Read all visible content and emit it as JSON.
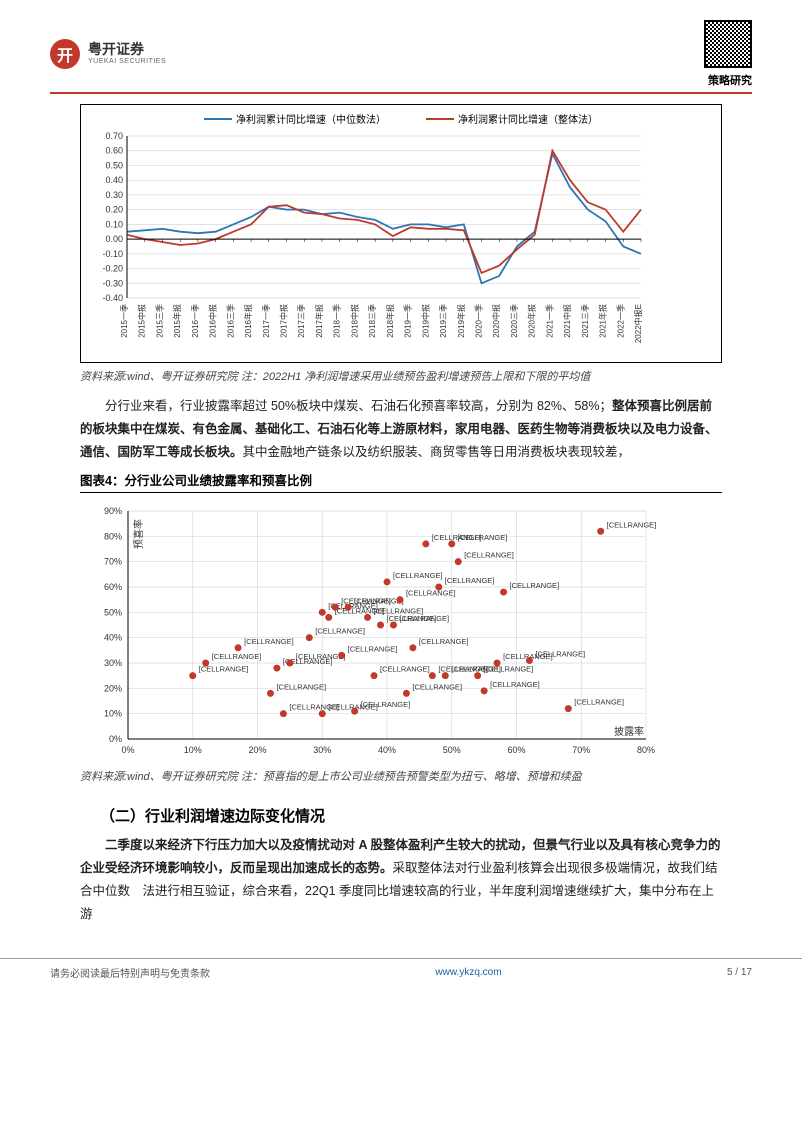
{
  "header": {
    "logo_cn": "粤开证券",
    "logo_en": "YUEKAI SECURITIES",
    "logo_mark": "开",
    "strategy": "策略研究"
  },
  "chart1": {
    "type": "line",
    "legend": [
      {
        "label": "净利润累计同比增速（中位数法）",
        "color": "#2e75b6"
      },
      {
        "label": "净利润累计同比增速（整体法）",
        "color": "#c0392b"
      }
    ],
    "x_categories": [
      "2015一季",
      "2015中报",
      "2015三季",
      "2015年报",
      "2016一季",
      "2016中报",
      "2016三季",
      "2016年报",
      "2017一季",
      "2017中报",
      "2017三季",
      "2017年报",
      "2018一季",
      "2018中报",
      "2018三季",
      "2018年报",
      "2019一季",
      "2019中报",
      "2019三季",
      "2019年报",
      "2020一季",
      "2020中报",
      "2020三季",
      "2020年报",
      "2021一季",
      "2021中报",
      "2021三季",
      "2021年报",
      "2022一季",
      "2022中报E"
    ],
    "ylim": [
      -0.4,
      0.7
    ],
    "yticks": [
      -0.4,
      -0.3,
      -0.2,
      -0.1,
      0.0,
      0.1,
      0.2,
      0.3,
      0.4,
      0.5,
      0.6,
      0.7
    ],
    "grid_color": "#d9d9d9",
    "axis_color": "#000000",
    "title_fontsize": 9,
    "series": {
      "blue": [
        0.05,
        0.06,
        0.07,
        0.05,
        0.04,
        0.05,
        0.1,
        0.15,
        0.22,
        0.2,
        0.2,
        0.17,
        0.18,
        0.15,
        0.13,
        0.07,
        0.1,
        0.1,
        0.08,
        0.1,
        -0.3,
        -0.25,
        -0.05,
        0.05,
        0.58,
        0.35,
        0.2,
        0.12,
        -0.05,
        -0.1
      ],
      "red": [
        0.03,
        0.0,
        -0.02,
        -0.04,
        -0.03,
        0.0,
        0.05,
        0.1,
        0.22,
        0.23,
        0.18,
        0.17,
        0.14,
        0.13,
        0.1,
        0.02,
        0.08,
        0.07,
        0.07,
        0.06,
        -0.23,
        -0.18,
        -0.07,
        0.03,
        0.6,
        0.4,
        0.25,
        0.2,
        0.05,
        0.2
      ]
    },
    "source": "资料来源:wind、粤开证券研究院  注：2022H1 净利润增速采用业绩预告盈利增速预告上限和下限的平均值"
  },
  "para1": {
    "lead": "分行业来看，行业披露率超过 50%板块中煤炭、石油石化预喜率较高，分别为 82%、58%；",
    "bold": "整体预喜比例居前的板块集中在煤炭、有色金属、基础化工、石油石化等上游原材料，家用电器、医药生物等消费板块以及电力设备、通信、国防军工等成长板块。",
    "tail": "其中金融地产链条以及纺织服装、商贸零售等日用消费板块表现较差，"
  },
  "figure4_title": "图表4：分行业公司业绩披露率和预喜比例",
  "chart2": {
    "type": "scatter",
    "xlim": [
      0,
      80
    ],
    "ylim": [
      0,
      90
    ],
    "xticks": [
      0,
      10,
      20,
      30,
      40,
      50,
      60,
      70,
      80
    ],
    "yticks": [
      0,
      10,
      20,
      30,
      40,
      50,
      60,
      70,
      80,
      90
    ],
    "grid_color": "#d9d9d9",
    "marker_color": "#c0392b",
    "label_color": "#333333",
    "xlabel": "披露率",
    "ylabel": "预喜率",
    "point_label": "[CELLRANGE]",
    "points": [
      {
        "x": 10,
        "y": 25
      },
      {
        "x": 12,
        "y": 30
      },
      {
        "x": 17,
        "y": 36
      },
      {
        "x": 22,
        "y": 18
      },
      {
        "x": 23,
        "y": 28
      },
      {
        "x": 24,
        "y": 10
      },
      {
        "x": 25,
        "y": 30
      },
      {
        "x": 28,
        "y": 40
      },
      {
        "x": 30,
        "y": 50
      },
      {
        "x": 30,
        "y": 10
      },
      {
        "x": 31,
        "y": 48
      },
      {
        "x": 32,
        "y": 52
      },
      {
        "x": 33,
        "y": 33
      },
      {
        "x": 34,
        "y": 52
      },
      {
        "x": 35,
        "y": 11
      },
      {
        "x": 37,
        "y": 48
      },
      {
        "x": 38,
        "y": 25
      },
      {
        "x": 39,
        "y": 45
      },
      {
        "x": 40,
        "y": 62
      },
      {
        "x": 41,
        "y": 45
      },
      {
        "x": 42,
        "y": 55
      },
      {
        "x": 43,
        "y": 18
      },
      {
        "x": 44,
        "y": 36
      },
      {
        "x": 46,
        "y": 77
      },
      {
        "x": 47,
        "y": 25
      },
      {
        "x": 48,
        "y": 60
      },
      {
        "x": 49,
        "y": 25
      },
      {
        "x": 50,
        "y": 77
      },
      {
        "x": 51,
        "y": 70
      },
      {
        "x": 54,
        "y": 25
      },
      {
        "x": 55,
        "y": 19
      },
      {
        "x": 57,
        "y": 30
      },
      {
        "x": 58,
        "y": 58
      },
      {
        "x": 62,
        "y": 31
      },
      {
        "x": 68,
        "y": 12
      },
      {
        "x": 73,
        "y": 82
      }
    ],
    "source": "资料来源:wind、粤开证券研究院  注：预喜指的是上市公司业绩预告预警类型为扭亏、略增、预增和续盈"
  },
  "section2_heading": "（二）行业利润增速边际变化情况",
  "para2": {
    "bold": "二季度以来经济下行压力加大以及疫情扰动对 A 股整体盈利产生较大的扰动，但景气行业以及具有核心竞争力的企业受经济环境影响较小，反而呈现出加速成长的态势。",
    "rest": "采取整体法对行业盈利核算会出现很多极端情况，故我们结合中位数　法进行相互验证，综合来看，22Q1 季度同比增速较高的行业，半年度利润增速继续扩大，集中分布在上游"
  },
  "footer": {
    "left": "请务必阅读最后特别声明与免责条款",
    "center": "www.ykzq.com",
    "right": "5 / 17"
  }
}
